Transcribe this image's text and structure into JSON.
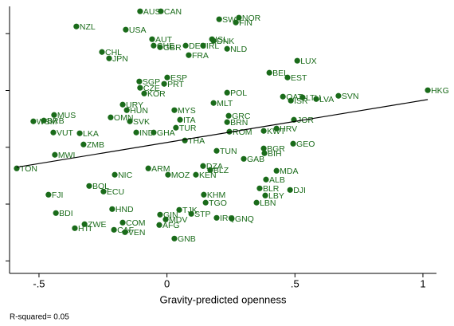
{
  "chart_data": {
    "type": "scatter",
    "x_label": "Gravity-predicted openness",
    "note": "R-squared= 0.05",
    "color": "#1a6b1a",
    "line_color": "#000000",
    "xlim": [
      -0.615,
      1.053
    ],
    "ylim": [
      0.78,
      5.48
    ],
    "xticks": [
      {
        "value": -0.5,
        "label": "-.5"
      },
      0,
      {
        "value": 0.5,
        "label": ".5"
      },
      1
    ],
    "yticks": [
      1,
      2,
      3,
      4,
      5
    ],
    "fit_line": {
      "x": [
        -0.587,
        1.019
      ],
      "y": [
        2.649,
        3.84
      ]
    },
    "points": [
      {
        "label": "AUS",
        "x": -0.105,
        "y": 5.393
      },
      {
        "label": "CAN",
        "x": -0.024,
        "y": 5.393
      },
      {
        "label": "SWE",
        "x": 0.204,
        "y": 5.253
      },
      {
        "label": "NOR",
        "x": 0.281,
        "y": 5.281
      },
      {
        "label": "FIN",
        "x": 0.269,
        "y": 5.196
      },
      {
        "label": "NZL",
        "x": -0.354,
        "y": 5.126
      },
      {
        "label": "USA",
        "x": -0.161,
        "y": 5.07
      },
      {
        "label": "AUT",
        "x": -0.058,
        "y": 4.902
      },
      {
        "label": "ISL",
        "x": 0.176,
        "y": 4.902
      },
      {
        "label": "DNK",
        "x": 0.182,
        "y": 4.874
      },
      {
        "label": "CHE",
        "x": -0.052,
        "y": 4.789
      },
      {
        "label": "GBR",
        "x": -0.027,
        "y": 4.761
      },
      {
        "label": "DEU",
        "x": 0.073,
        "y": 4.789
      },
      {
        "label": "IRL",
        "x": 0.141,
        "y": 4.789
      },
      {
        "label": "NLD",
        "x": 0.235,
        "y": 4.733
      },
      {
        "label": "CHL",
        "x": -0.254,
        "y": 4.677
      },
      {
        "label": "JPN",
        "x": -0.226,
        "y": 4.565
      },
      {
        "label": "FRA",
        "x": 0.085,
        "y": 4.621
      },
      {
        "label": "LUX",
        "x": 0.509,
        "y": 4.523
      },
      {
        "label": "BEL",
        "x": 0.4,
        "y": 4.312
      },
      {
        "label": "EST",
        "x": 0.471,
        "y": 4.228
      },
      {
        "label": "ESP",
        "x": 0.001,
        "y": 4.228
      },
      {
        "label": "SGP",
        "x": -0.108,
        "y": 4.158
      },
      {
        "label": "PRT",
        "x": -0.011,
        "y": 4.116
      },
      {
        "label": "CZE",
        "x": -0.105,
        "y": 4.046
      },
      {
        "label": "KOR",
        "x": -0.089,
        "y": 3.947
      },
      {
        "label": "HKG",
        "x": 1.019,
        "y": 4.004
      },
      {
        "label": "POL",
        "x": 0.235,
        "y": 3.961
      },
      {
        "label": "SVN",
        "x": 0.67,
        "y": 3.905
      },
      {
        "label": "QAT",
        "x": 0.453,
        "y": 3.891
      },
      {
        "label": "ISR",
        "x": 0.484,
        "y": 3.821
      },
      {
        "label": "LTU",
        "x": 0.53,
        "y": 3.877
      },
      {
        "label": "LVA",
        "x": 0.583,
        "y": 3.849
      },
      {
        "label": "URY",
        "x": -0.173,
        "y": 3.751
      },
      {
        "label": "MLT",
        "x": 0.182,
        "y": 3.779
      },
      {
        "label": "HUN",
        "x": -0.157,
        "y": 3.653
      },
      {
        "label": "MYS",
        "x": 0.029,
        "y": 3.653
      },
      {
        "label": "MUS",
        "x": -0.441,
        "y": 3.568
      },
      {
        "label": "GRC",
        "x": 0.241,
        "y": 3.554
      },
      {
        "label": "JOR",
        "x": 0.496,
        "y": 3.484
      },
      {
        "label": "BRB",
        "x": -0.481,
        "y": 3.47
      },
      {
        "label": "WSM",
        "x": -0.522,
        "y": 3.456
      },
      {
        "label": "SVK",
        "x": -0.145,
        "y": 3.456
      },
      {
        "label": "ITA",
        "x": 0.051,
        "y": 3.484
      },
      {
        "label": "BRN",
        "x": 0.235,
        "y": 3.442
      },
      {
        "label": "TUR",
        "x": 0.035,
        "y": 3.344
      },
      {
        "label": "ROM",
        "x": 0.244,
        "y": 3.274
      },
      {
        "label": "KWT",
        "x": 0.378,
        "y": 3.288
      },
      {
        "label": "HRV",
        "x": 0.428,
        "y": 3.33
      },
      {
        "label": "GEO",
        "x": 0.493,
        "y": 3.063
      },
      {
        "label": "VUT",
        "x": -0.444,
        "y": 3.26
      },
      {
        "label": "LKA",
        "x": -0.341,
        "y": 3.246
      },
      {
        "label": "IND",
        "x": -0.12,
        "y": 3.26
      },
      {
        "label": "GHA",
        "x": -0.052,
        "y": 3.26
      },
      {
        "label": "THA",
        "x": 0.07,
        "y": 3.119
      },
      {
        "label": "ZMB",
        "x": -0.326,
        "y": 3.049
      },
      {
        "label": "MWI",
        "x": -0.438,
        "y": 2.867
      },
      {
        "label": "TON",
        "x": -0.587,
        "y": 2.628
      },
      {
        "label": "BGR",
        "x": 0.378,
        "y": 2.979
      },
      {
        "label": "BIH",
        "x": 0.381,
        "y": 2.895
      },
      {
        "label": "TUN",
        "x": 0.194,
        "y": 2.937
      },
      {
        "label": "GAB",
        "x": 0.3,
        "y": 2.796
      },
      {
        "label": "MDA",
        "x": 0.428,
        "y": 2.586
      },
      {
        "label": "ALB",
        "x": 0.387,
        "y": 2.432
      },
      {
        "label": "DJI",
        "x": 0.481,
        "y": 2.249
      },
      {
        "label": "BLR",
        "x": 0.362,
        "y": 2.277
      },
      {
        "label": "LBY",
        "x": 0.384,
        "y": 2.151
      },
      {
        "label": "LBN",
        "x": 0.35,
        "y": 2.025
      },
      {
        "label": "FJI",
        "x": -0.463,
        "y": 2.165
      },
      {
        "label": "BDI",
        "x": -0.434,
        "y": 1.842
      },
      {
        "label": "ZWE",
        "x": -0.322,
        "y": 1.646
      },
      {
        "label": "HTI",
        "x": -0.36,
        "y": 1.575
      },
      {
        "label": "COM",
        "x": -0.173,
        "y": 1.674
      },
      {
        "label": "CAF",
        "x": -0.207,
        "y": 1.547
      },
      {
        "label": "VEN",
        "x": -0.164,
        "y": 1.505
      },
      {
        "label": "AFG",
        "x": -0.03,
        "y": 1.632
      },
      {
        "label": "GNB",
        "x": 0.029,
        "y": 1.393
      },
      {
        "label": "STP",
        "x": 0.095,
        "y": 1.828
      },
      {
        "label": "IRQ",
        "x": 0.194,
        "y": 1.758
      },
      {
        "label": "GNQ",
        "x": 0.253,
        "y": 1.744
      },
      {
        "label": "MDV",
        "x": -0.005,
        "y": 1.73
      },
      {
        "label": "GIN",
        "x": -0.027,
        "y": 1.814
      },
      {
        "label": "TJK",
        "x": 0.048,
        "y": 1.898
      },
      {
        "label": "KHM",
        "x": 0.144,
        "y": 2.165
      },
      {
        "label": "TGO",
        "x": 0.151,
        "y": 2.025
      },
      {
        "label": "NIC",
        "x": -0.204,
        "y": 2.516
      },
      {
        "label": "KEN",
        "x": 0.113,
        "y": 2.516
      },
      {
        "label": "MOZ",
        "x": 0.004,
        "y": 2.516
      },
      {
        "label": "HND",
        "x": -0.214,
        "y": 1.912
      },
      {
        "label": "ECU",
        "x": -0.248,
        "y": 2.221
      },
      {
        "label": "BOL",
        "x": -0.304,
        "y": 2.319
      },
      {
        "label": "ARM",
        "x": -0.073,
        "y": 2.628
      },
      {
        "label": "DZA",
        "x": 0.141,
        "y": 2.67
      },
      {
        "label": "BLZ",
        "x": 0.169,
        "y": 2.6
      },
      {
        "label": "OMN",
        "x": -0.22,
        "y": 3.526
      }
    ]
  }
}
